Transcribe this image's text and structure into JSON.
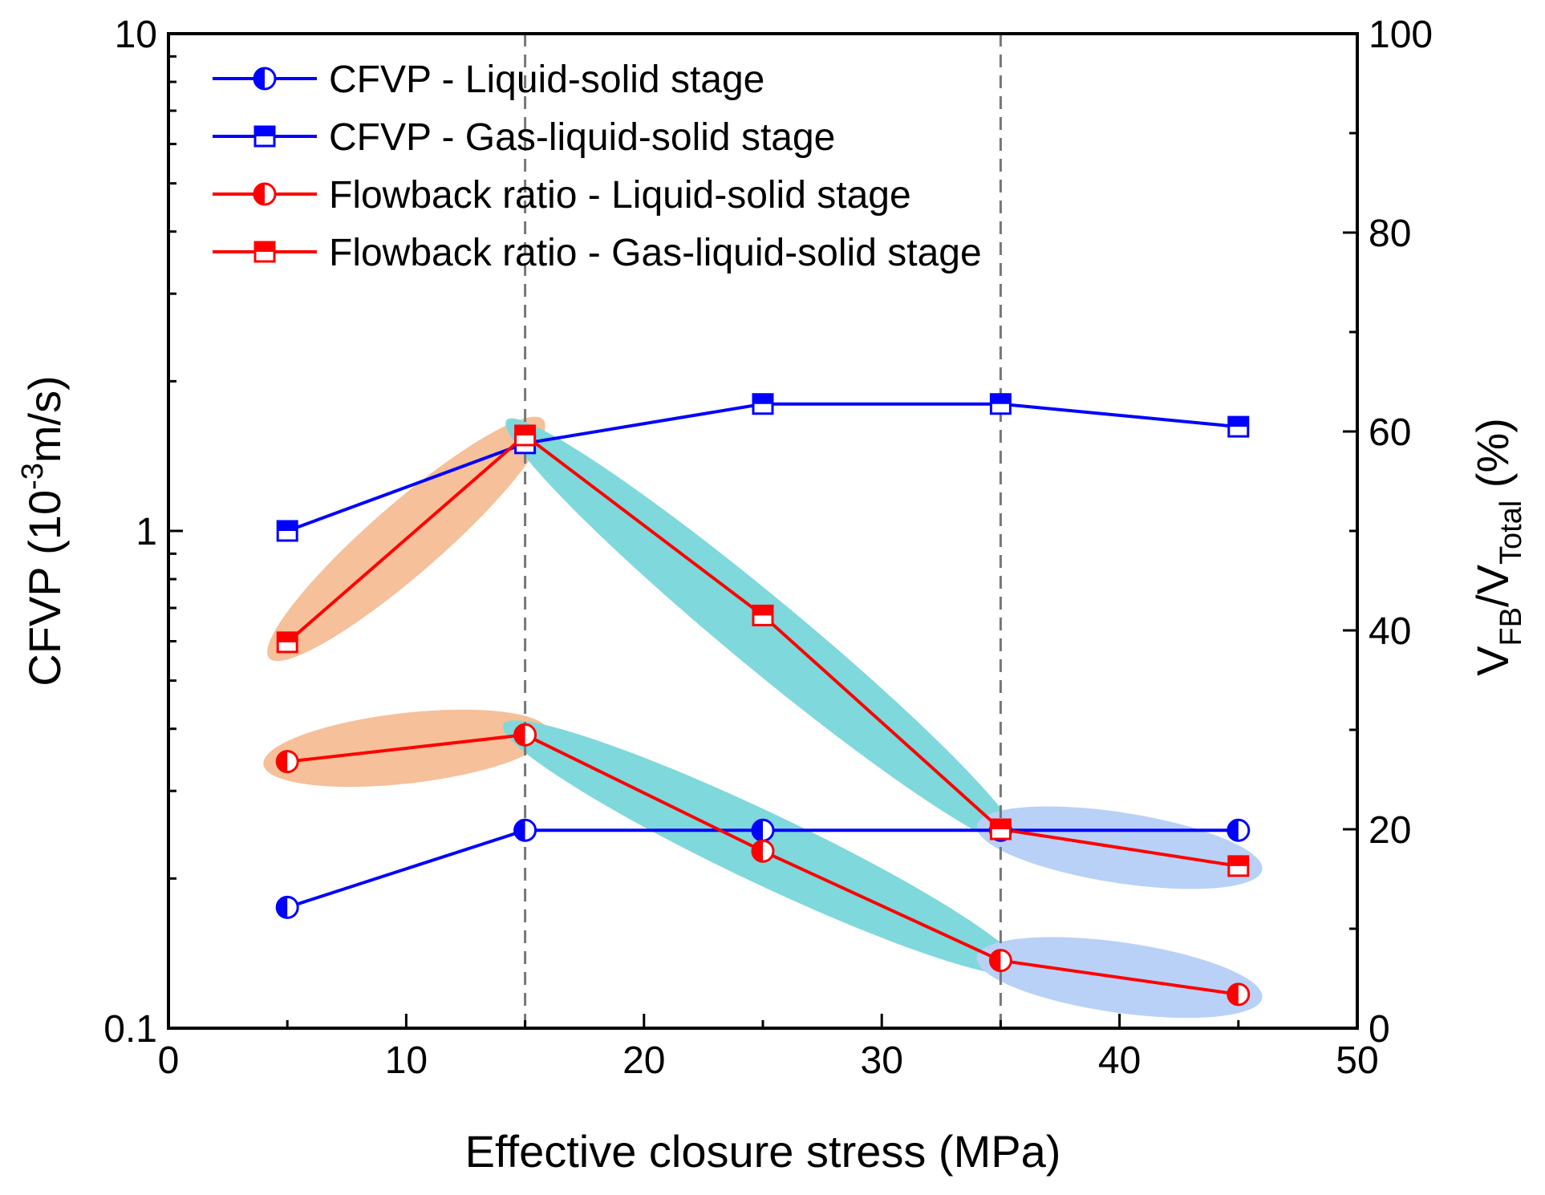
{
  "chart_data": {
    "type": "line",
    "xlabel": "Effective closure stress (MPa)",
    "x_range": [
      0,
      50
    ],
    "x_ticks": [
      0,
      10,
      20,
      30,
      40,
      50
    ],
    "x_tick_labels": [
      "0",
      "10",
      "20",
      "30",
      "40",
      "50"
    ],
    "ylabel_left": {
      "main": "CFVP (10",
      "sup": "-3",
      "rest": "m/s)"
    },
    "y_left_scale": "log",
    "y_left_range": [
      0.1,
      10
    ],
    "y_left_ticks": [
      0.1,
      1,
      10
    ],
    "y_left_tick_labels": [
      "0.1",
      "1",
      "10"
    ],
    "ylabel_right": {
      "v1": "V",
      "sub1": "FB",
      "slash": "/V",
      "sub2": "Total",
      "rest": " (%)"
    },
    "y_right_range": [
      0,
      100
    ],
    "y_right_ticks": [
      0,
      20,
      40,
      60,
      80,
      100
    ],
    "y_right_tick_labels": [
      "0",
      "20",
      "40",
      "60",
      "80",
      "100"
    ],
    "vertical_reference_lines_x": [
      15,
      35
    ],
    "x": [
      5,
      15,
      25,
      35,
      45
    ],
    "series": [
      {
        "name": "CFVP - Liquid-solid stage",
        "axis": "left",
        "marker": "circle-half",
        "color": "#0000ff",
        "values": [
          0.175,
          0.25,
          0.25,
          0.25,
          0.25
        ]
      },
      {
        "name": "CFVP - Gas-liquid-solid stage",
        "axis": "left",
        "marker": "square-half",
        "color": "#0000ff",
        "values": [
          1.0,
          1.5,
          1.8,
          1.8,
          1.62
        ]
      },
      {
        "name": "Flowback ratio - Liquid-solid stage",
        "axis": "right",
        "marker": "circle-half",
        "color": "#ff0000",
        "values": [
          26.8,
          29.5,
          17.8,
          6.8,
          3.4
        ]
      },
      {
        "name": "Flowback ratio - Gas-liquid-solid stage",
        "axis": "right",
        "marker": "square-half",
        "color": "#ff0000",
        "values": [
          38.8,
          59.6,
          41.5,
          20.0,
          16.3
        ]
      }
    ],
    "highlight_bands": [
      {
        "axis": "right",
        "from": [
          5,
          38.8
        ],
        "to": [
          15,
          59.6
        ],
        "color": "#f5c09a"
      },
      {
        "axis": "right",
        "from": [
          15,
          59.6
        ],
        "to": [
          35,
          20.0
        ],
        "color": "#7fd8dc"
      },
      {
        "axis": "right",
        "from": [
          35,
          20.0
        ],
        "to": [
          45,
          16.3
        ],
        "color": "#b9d1f7"
      },
      {
        "axis": "right",
        "from": [
          5,
          26.8
        ],
        "to": [
          15,
          29.5
        ],
        "color": "#f5c09a"
      },
      {
        "axis": "right",
        "from": [
          15,
          29.5
        ],
        "to": [
          35,
          6.8
        ],
        "color": "#7fd8dc"
      },
      {
        "axis": "right",
        "from": [
          35,
          6.8
        ],
        "to": [
          45,
          3.4
        ],
        "color": "#b9d1f7"
      }
    ],
    "legend_position": "top-left"
  }
}
